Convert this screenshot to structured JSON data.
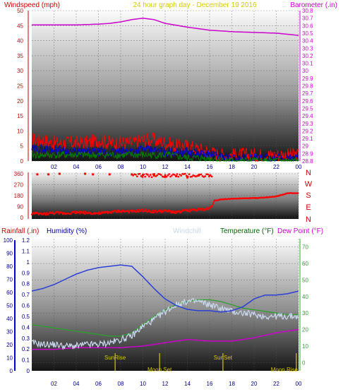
{
  "header": {
    "left_label": "Windspeed (mph)",
    "center_label": "24 hour graph day - December 19 2016",
    "right_label": "Barometer (.in)"
  },
  "x_ticks": [
    "02",
    "04",
    "06",
    "08",
    "10",
    "12",
    "14",
    "16",
    "18",
    "20",
    "22",
    "00"
  ],
  "colors": {
    "wind": "#ff0000",
    "gust": "#0000cc",
    "wind_avg": "#008000",
    "barometer": "#cc00cc",
    "direction": "#ff0000",
    "humidity": "#2a3fd6",
    "windchill": "#c8d8ef",
    "temperature": "#2ea02e",
    "dewpoint": "#cc00cc",
    "rainfall": "#0000cc",
    "event_line": "#d4c800"
  },
  "compass": [
    "N",
    "W",
    "S",
    "E",
    "N"
  ],
  "middle_header": {
    "rainfall": "Rainfall (.in)",
    "humidity": "Humidity (%)",
    "windchill": "Windchill",
    "temperature": "Temperature (°F)",
    "dewpoint": "Dew Point (°F)"
  },
  "events": [
    {
      "label": "SunRise",
      "hour": 7.5
    },
    {
      "label": "Moon Set",
      "hour": 11.5
    },
    {
      "label": "SunSet",
      "hour": 17.2
    },
    {
      "label": "Moon Rise",
      "hour": 23.8
    }
  ],
  "chart_data": [
    {
      "type": "line",
      "x_unit": "hour",
      "left_axis": {
        "label": "Windspeed (mph)",
        "ticks": [
          0,
          5,
          10,
          15,
          20,
          25,
          30,
          35,
          40,
          45,
          50
        ],
        "ylim": [
          0,
          50
        ]
      },
      "right_axis": {
        "label": "Barometer (.in)",
        "ticks": [
          28.8,
          28.9,
          29,
          29.1,
          29.2,
          29.3,
          29.4,
          29.5,
          29.6,
          29.7,
          29.8,
          29.9,
          30,
          30.1,
          30.2,
          30.3,
          30.4,
          30.5,
          30.6,
          30.7,
          30.8
        ],
        "ylim": [
          28.8,
          30.8
        ]
      },
      "series": [
        {
          "axis": "right",
          "x": [
            0,
            2,
            4,
            6,
            7,
            8,
            9,
            10,
            11,
            12,
            14,
            16,
            18,
            20,
            22,
            24
          ],
          "values": [
            30.61,
            30.61,
            30.61,
            30.62,
            30.63,
            30.65,
            30.68,
            30.7,
            30.68,
            30.63,
            30.58,
            30.54,
            30.52,
            30.51,
            30.5,
            30.47
          ]
        },
        {
          "axis": "left",
          "x": [
            0,
            1,
            2,
            3,
            4,
            5,
            6,
            7,
            8,
            9,
            10,
            11,
            12,
            13,
            14,
            15,
            16,
            17,
            18,
            19,
            20,
            21,
            22,
            23,
            24
          ],
          "values": [
            7,
            7,
            6,
            6,
            6,
            6,
            7,
            6,
            6,
            6,
            7,
            7,
            6,
            5,
            5,
            4,
            3,
            2,
            2,
            2,
            2,
            2,
            2,
            2,
            2
          ]
        },
        {
          "axis": "left",
          "x": [
            0,
            2,
            4,
            6,
            8,
            10,
            12,
            14,
            16,
            18,
            20,
            22,
            24
          ],
          "values": [
            4,
            4,
            3,
            3,
            3,
            4,
            3,
            3,
            2,
            1,
            1,
            1,
            1
          ]
        },
        {
          "axis": "left",
          "x": [
            0,
            2,
            4,
            6,
            8,
            10,
            12,
            14,
            16,
            18,
            20,
            22,
            24
          ],
          "values": [
            2,
            2,
            2,
            2,
            2,
            2,
            2,
            1,
            1,
            0,
            0,
            0,
            0
          ]
        }
      ]
    },
    {
      "type": "scatter",
      "x_unit": "hour",
      "ticks": [
        0,
        90,
        180,
        270,
        360
      ],
      "ylim": [
        0,
        360
      ],
      "points": [
        [
          0,
          30
        ],
        [
          1,
          25
        ],
        [
          2,
          35
        ],
        [
          3,
          30
        ],
        [
          4,
          40
        ],
        [
          5,
          35
        ],
        [
          6,
          30
        ],
        [
          7,
          40
        ],
        [
          8,
          50
        ],
        [
          9,
          45
        ],
        [
          10,
          55
        ],
        [
          11,
          45
        ],
        [
          12,
          50
        ],
        [
          13,
          40
        ],
        [
          14,
          55
        ],
        [
          15,
          60
        ],
        [
          16,
          70
        ],
        [
          16.5,
          140
        ],
        [
          17,
          150
        ],
        [
          18,
          155
        ],
        [
          19,
          158
        ],
        [
          20,
          160
        ],
        [
          21,
          165
        ],
        [
          22,
          175
        ],
        [
          23,
          200
        ],
        [
          24,
          200
        ],
        [
          0.5,
          355
        ],
        [
          1.5,
          355
        ],
        [
          2.5,
          360
        ],
        [
          4.8,
          360
        ],
        [
          5.5,
          355
        ],
        [
          7,
          355
        ],
        [
          9,
          355
        ],
        [
          10,
          350
        ],
        [
          11,
          345
        ],
        [
          12,
          335
        ],
        [
          13,
          340
        ],
        [
          14,
          330
        ],
        [
          15,
          345
        ],
        [
          16,
          345
        ]
      ]
    },
    {
      "type": "line",
      "x_unit": "hour",
      "left_axis": {
        "label": "Humidity (%)",
        "ticks": [
          0,
          10,
          20,
          30,
          40,
          50,
          60,
          70,
          80,
          90,
          100
        ],
        "ylim": [
          0,
          100
        ]
      },
      "rain_axis": {
        "label": "Rainfall (.in)",
        "ticks": [
          0,
          0.1,
          0.2,
          0.3,
          0.4,
          0.5,
          0.6,
          0.7,
          0.8,
          0.9,
          1,
          1.1,
          1.2
        ],
        "ylim": [
          0,
          1.2
        ]
      },
      "right_axis": {
        "label": "Temperature (°F)",
        "ticks": [
          0,
          10,
          20,
          30,
          40,
          50,
          60,
          70
        ],
        "ylim": [
          -5,
          75
        ]
      },
      "series": [
        {
          "name": "Humidity (%)",
          "axis": "left",
          "x": [
            0,
            1,
            2,
            3,
            4,
            5,
            6,
            7,
            8,
            9,
            10,
            11,
            12,
            13,
            14,
            15,
            16,
            17,
            18,
            19,
            20,
            21,
            22,
            23,
            24
          ],
          "values": [
            61,
            63,
            66,
            70,
            74,
            77,
            79,
            80,
            81,
            80,
            72,
            63,
            55,
            50,
            47,
            46,
            46,
            45,
            46,
            49,
            55,
            58,
            58,
            59,
            61
          ]
        },
        {
          "name": "Windchill",
          "axis": "right",
          "x": [
            0,
            1,
            2,
            3,
            4,
            5,
            6,
            7,
            8,
            9,
            10,
            11,
            12,
            13,
            14,
            15,
            16,
            17,
            18,
            19,
            20,
            21,
            22,
            23,
            24
          ],
          "values": [
            12,
            11,
            11,
            10,
            10,
            11,
            11,
            12,
            14,
            16,
            22,
            26,
            31,
            35,
            37,
            37,
            35,
            33,
            31,
            30,
            29,
            28,
            28,
            28,
            28
          ]
        },
        {
          "name": "Temperature (°F)",
          "axis": "right",
          "x": [
            0,
            1,
            2,
            3,
            4,
            5,
            6,
            7,
            8,
            9,
            10,
            11,
            12,
            13,
            14,
            15,
            16,
            17,
            18,
            19,
            20,
            21,
            22,
            23,
            24
          ],
          "values": [
            23,
            22,
            21,
            20,
            19,
            18,
            17,
            16,
            16,
            18,
            23,
            28,
            32,
            35,
            37,
            38,
            38,
            37,
            35,
            33,
            32,
            31,
            30,
            29,
            29
          ]
        },
        {
          "name": "Dew Point (°F)",
          "axis": "right",
          "x": [
            0,
            2,
            4,
            6,
            8,
            10,
            12,
            14,
            16,
            18,
            20,
            22,
            24
          ],
          "values": [
            8,
            8,
            9,
            9,
            9,
            10,
            12,
            14,
            13,
            13,
            15,
            18,
            20
          ]
        }
      ]
    }
  ]
}
